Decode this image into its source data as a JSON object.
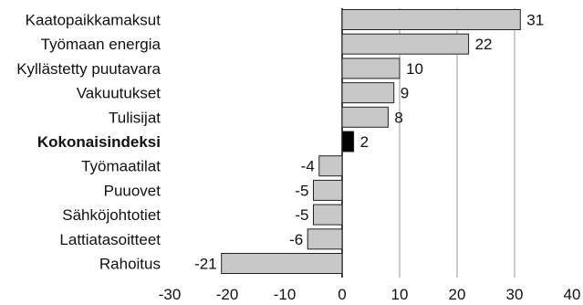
{
  "chart_data": {
    "type": "bar",
    "orientation": "horizontal",
    "title": "",
    "xlabel": "",
    "ylabel": "",
    "categories": [
      "Kaatopaikkamaksut",
      "Työmaan energia",
      "Kyllästetty puutavara",
      "Vakuutukset",
      "Tulisijat",
      "Kokonaisindeksi",
      "Työmaatilat",
      "Puuovet",
      "Sähköjohtotiet",
      "Lattiatasoitteet",
      "Rahoitus"
    ],
    "values": [
      31,
      22,
      10,
      9,
      8,
      2,
      -4,
      -5,
      -5,
      -6,
      -21
    ],
    "highlight": "Kokonaisindeksi",
    "xlim": [
      -30,
      40
    ],
    "xticks": [
      "-30",
      "-20",
      "-10",
      "0",
      "10",
      "20",
      "30",
      "40"
    ],
    "grid": true,
    "colors": {
      "bar_fill": "#c8c8c8",
      "bar_stroke": "#222222",
      "highlight_fill": "#000000",
      "grid": "#999999",
      "axis": "#000000"
    }
  }
}
